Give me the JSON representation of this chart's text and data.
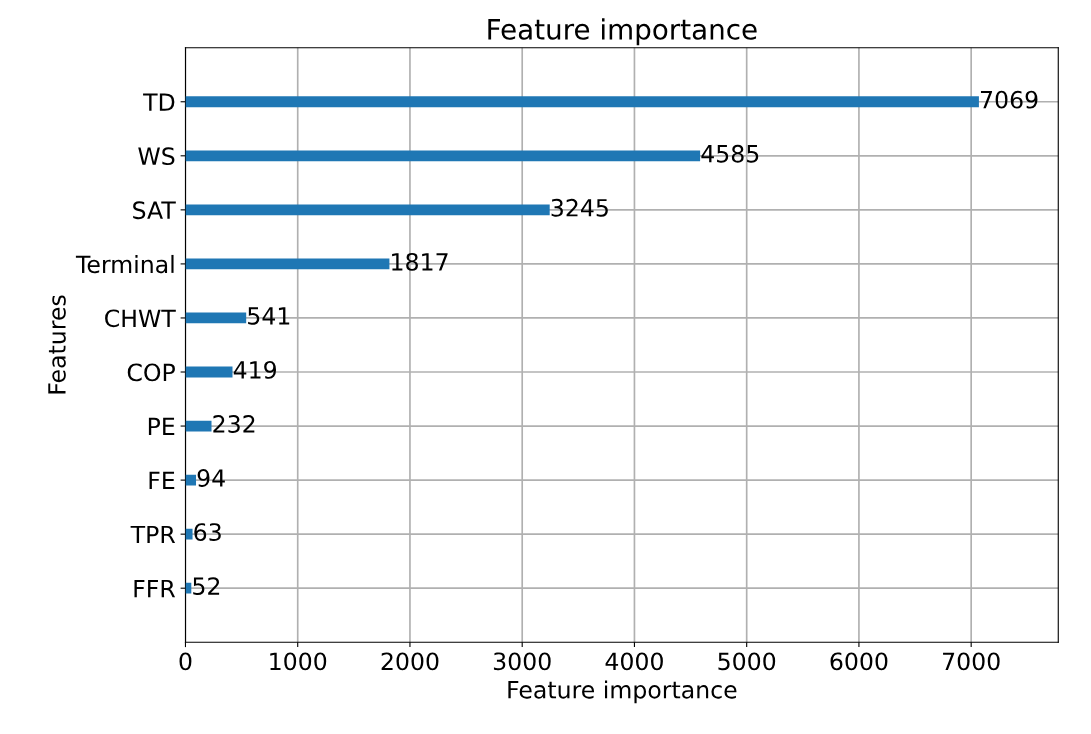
{
  "chart_data": {
    "type": "bar",
    "orientation": "horizontal",
    "title": "Feature importance",
    "xlabel": "Feature importance",
    "ylabel": "Features",
    "categories": [
      "TD",
      "WS",
      "SAT",
      "Terminal",
      "CHWT",
      "COP",
      "PE",
      "FE",
      "TPR",
      "FFR"
    ],
    "values": [
      7069,
      4585,
      3245,
      1817,
      541,
      419,
      232,
      94,
      63,
      52
    ],
    "color": "#1f77b4",
    "data_labels": true,
    "grid": true,
    "xlim": [
      0,
      7776
    ],
    "xticks": [
      0,
      1000,
      2000,
      3000,
      4000,
      5000,
      6000,
      7000
    ]
  }
}
